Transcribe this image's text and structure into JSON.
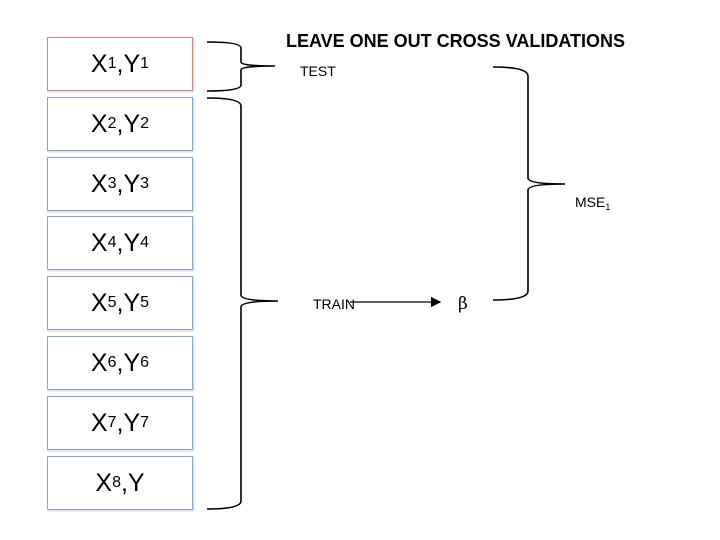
{
  "title": "LEAVE ONE OUT CROSS VALIDATIONS",
  "rows": [
    {
      "x": "X",
      "x_sub": "1",
      "y": "Y",
      "y_sub": "1",
      "role": "test"
    },
    {
      "x": "X",
      "x_sub": "2",
      "y": "Y",
      "y_sub": "2",
      "role": "train"
    },
    {
      "x": "X",
      "x_sub": "3",
      "y": "Y",
      "y_sub": "3",
      "role": "train"
    },
    {
      "x": "X",
      "x_sub": "4",
      "y": "Y",
      "y_sub": "4",
      "role": "train"
    },
    {
      "x": "X",
      "x_sub": "5",
      "y": "Y",
      "y_sub": "5",
      "role": "train"
    },
    {
      "x": "X",
      "x_sub": "6",
      "y": "Y",
      "y_sub": "6",
      "role": "train"
    },
    {
      "x": "X",
      "x_sub": "7",
      "y": "Y",
      "y_sub": "7",
      "role": "train"
    },
    {
      "x": "X",
      "x_sub": "8",
      "y": "Y",
      "y_sub": "",
      "role": "train"
    }
  ],
  "labels": {
    "test": "TEST",
    "train": "TRAIN",
    "beta": "β",
    "mse": "MSE",
    "mse_sub": "1"
  },
  "colors": {
    "test_border": "#d9827f",
    "train_border": "#8aa6c8",
    "line": "#000000"
  }
}
